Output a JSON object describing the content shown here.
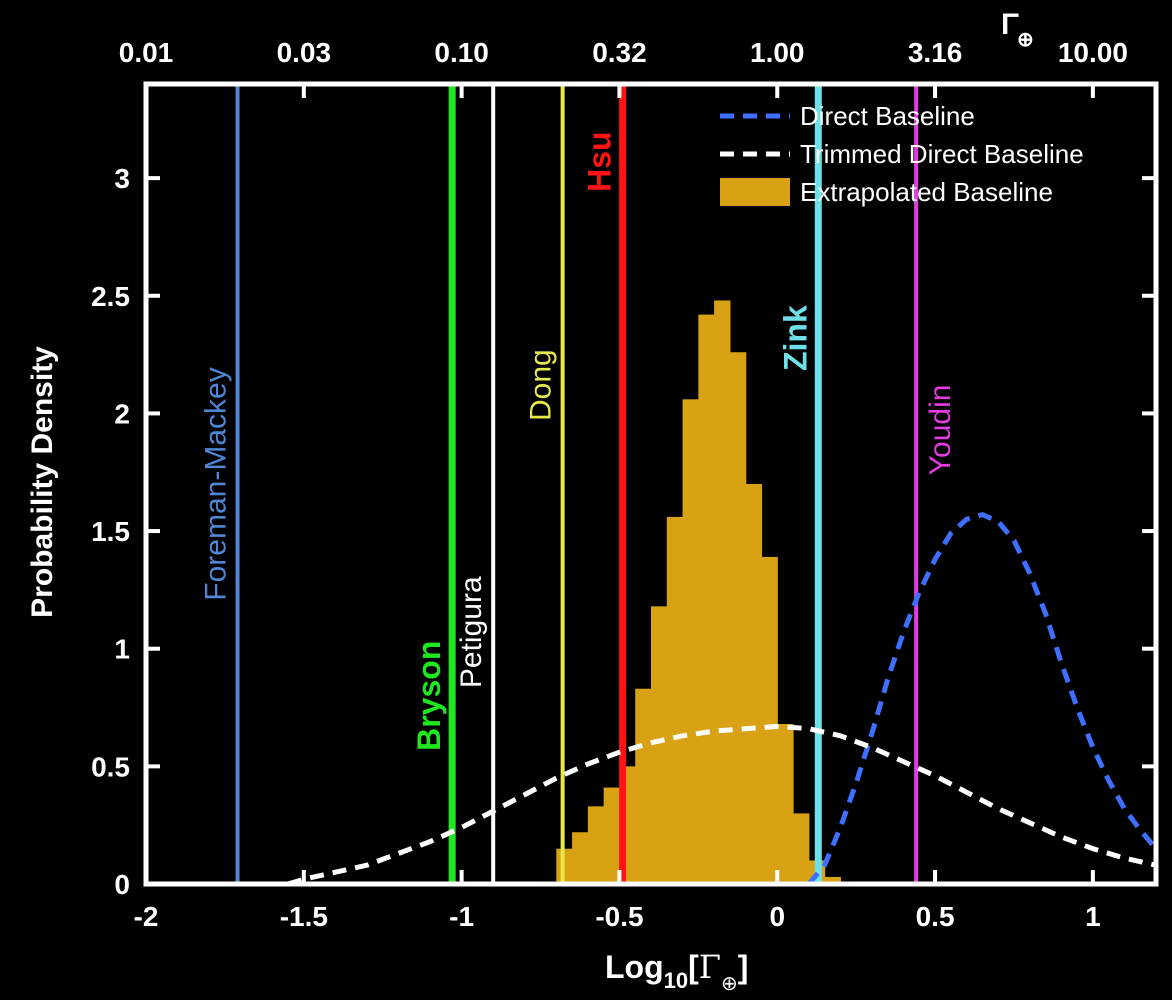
{
  "chart_data": {
    "type": "histogram+line",
    "xlabel": "Log10[Γ⊕]",
    "xlabel_base": "Log",
    "xlabel_sub": "10",
    "xlabel_bracket_open": "[",
    "xlabel_gamma": "Γ",
    "xlabel_gamma_sub": "⊕",
    "xlabel_bracket_close": "]",
    "ylabel": "Probability Density",
    "xlim": [
      -2.0,
      1.2
    ],
    "ylim": [
      0,
      3.4
    ],
    "x_ticks": [
      -2,
      -1.5,
      -1,
      -0.5,
      0,
      0.5,
      1
    ],
    "x_tick_labels": [
      "-2",
      "-1.5",
      "-1",
      "-0.5",
      "0",
      "0.5",
      "1"
    ],
    "y_ticks": [
      0,
      0.5,
      1,
      1.5,
      2,
      2.5,
      3
    ],
    "y_tick_labels": [
      "0",
      "0.5",
      "1",
      "1.5",
      "2",
      "2.5",
      "3"
    ],
    "top_axis": {
      "label": "Γ",
      "label_sub": "⊕",
      "ticks": [
        -2,
        -1.5,
        -1,
        -0.5,
        0,
        0.5,
        1
      ],
      "tick_labels": [
        "0.01",
        "0.03",
        "0.10",
        "0.32",
        "1.00",
        "3.16",
        "10.00"
      ]
    },
    "grid": false,
    "legend": {
      "placement": "top-right",
      "entries": [
        {
          "label": "Direct Baseline",
          "style": "dashed",
          "color": "#3f6fff"
        },
        {
          "label": "Trimmed Direct Baseline",
          "style": "dashed",
          "color": "#ffffff"
        },
        {
          "label": "Extrapolated Baseline",
          "style": "filled",
          "color": "#d9a214"
        }
      ]
    },
    "histogram": {
      "name": "Extrapolated Baseline",
      "color": "#d9a214",
      "bin_width": 0.05,
      "bin_starts": [
        -0.7,
        -0.65,
        -0.6,
        -0.55,
        -0.5,
        -0.45,
        -0.4,
        -0.35,
        -0.3,
        -0.25,
        -0.2,
        -0.15,
        -0.1,
        -0.05,
        0.0,
        0.05,
        0.1,
        0.15
      ],
      "values": [
        0.15,
        0.22,
        0.33,
        0.41,
        0.5,
        0.83,
        1.18,
        1.56,
        2.06,
        2.42,
        2.48,
        2.26,
        1.7,
        1.39,
        0.68,
        0.3,
        0.1,
        0.03
      ]
    },
    "series": [
      {
        "name": "Direct Baseline",
        "style": "dashed",
        "color": "#3f6fff",
        "x": [
          0.1,
          0.15,
          0.2,
          0.25,
          0.3,
          0.35,
          0.4,
          0.45,
          0.5,
          0.55,
          0.6,
          0.65,
          0.7,
          0.75,
          0.8,
          0.85,
          0.9,
          0.95,
          1.0,
          1.05,
          1.1,
          1.15,
          1.2
        ],
        "y": [
          0.0,
          0.08,
          0.24,
          0.43,
          0.64,
          0.87,
          1.07,
          1.24,
          1.38,
          1.49,
          1.55,
          1.57,
          1.54,
          1.46,
          1.32,
          1.15,
          0.94,
          0.75,
          0.58,
          0.44,
          0.32,
          0.23,
          0.15
        ]
      },
      {
        "name": "Trimmed Direct Baseline",
        "style": "dashed",
        "color": "#ffffff",
        "x": [
          -1.55,
          -1.5,
          -1.4,
          -1.3,
          -1.2,
          -1.1,
          -1.0,
          -0.9,
          -0.8,
          -0.7,
          -0.6,
          -0.5,
          -0.4,
          -0.3,
          -0.2,
          -0.1,
          0.0,
          0.1,
          0.2,
          0.3,
          0.4,
          0.5,
          0.6,
          0.7,
          0.8,
          0.9,
          1.0,
          1.1,
          1.2
        ],
        "y": [
          0.0,
          0.02,
          0.05,
          0.08,
          0.13,
          0.18,
          0.24,
          0.31,
          0.38,
          0.45,
          0.51,
          0.56,
          0.6,
          0.63,
          0.65,
          0.66,
          0.67,
          0.66,
          0.63,
          0.58,
          0.52,
          0.46,
          0.39,
          0.32,
          0.26,
          0.2,
          0.15,
          0.11,
          0.08
        ]
      }
    ],
    "vertical_lines": [
      {
        "label": "Foreman-Mackey",
        "x": -1.71,
        "color": "#4f86d6",
        "label_y": 1.7,
        "label_side": "left",
        "bold": false
      },
      {
        "label": "Bryson",
        "x": -1.03,
        "color": "#1ee81e",
        "label_y": 0.8,
        "label_side": "left",
        "bold": true
      },
      {
        "label": "Petigura",
        "x": -0.9,
        "color": "#ffffff",
        "label_y": 1.07,
        "label_side": "left",
        "bold": false
      },
      {
        "label": "Dong",
        "x": -0.68,
        "color": "#e8e84a",
        "label_y": 2.12,
        "label_side": "left",
        "bold": false
      },
      {
        "label": "Hsu",
        "x": -0.49,
        "color": "#ff1414",
        "label_y": 3.07,
        "label_side": "left",
        "bold": true
      },
      {
        "label": "Zink",
        "x": 0.13,
        "color": "#6fe0ea",
        "label_y": 2.32,
        "label_side": "left",
        "bold": true
      },
      {
        "label": "Youdin",
        "x": 0.44,
        "color": "#e23ce2",
        "label_y": 1.93,
        "label_side": "right",
        "bold": false
      }
    ]
  }
}
